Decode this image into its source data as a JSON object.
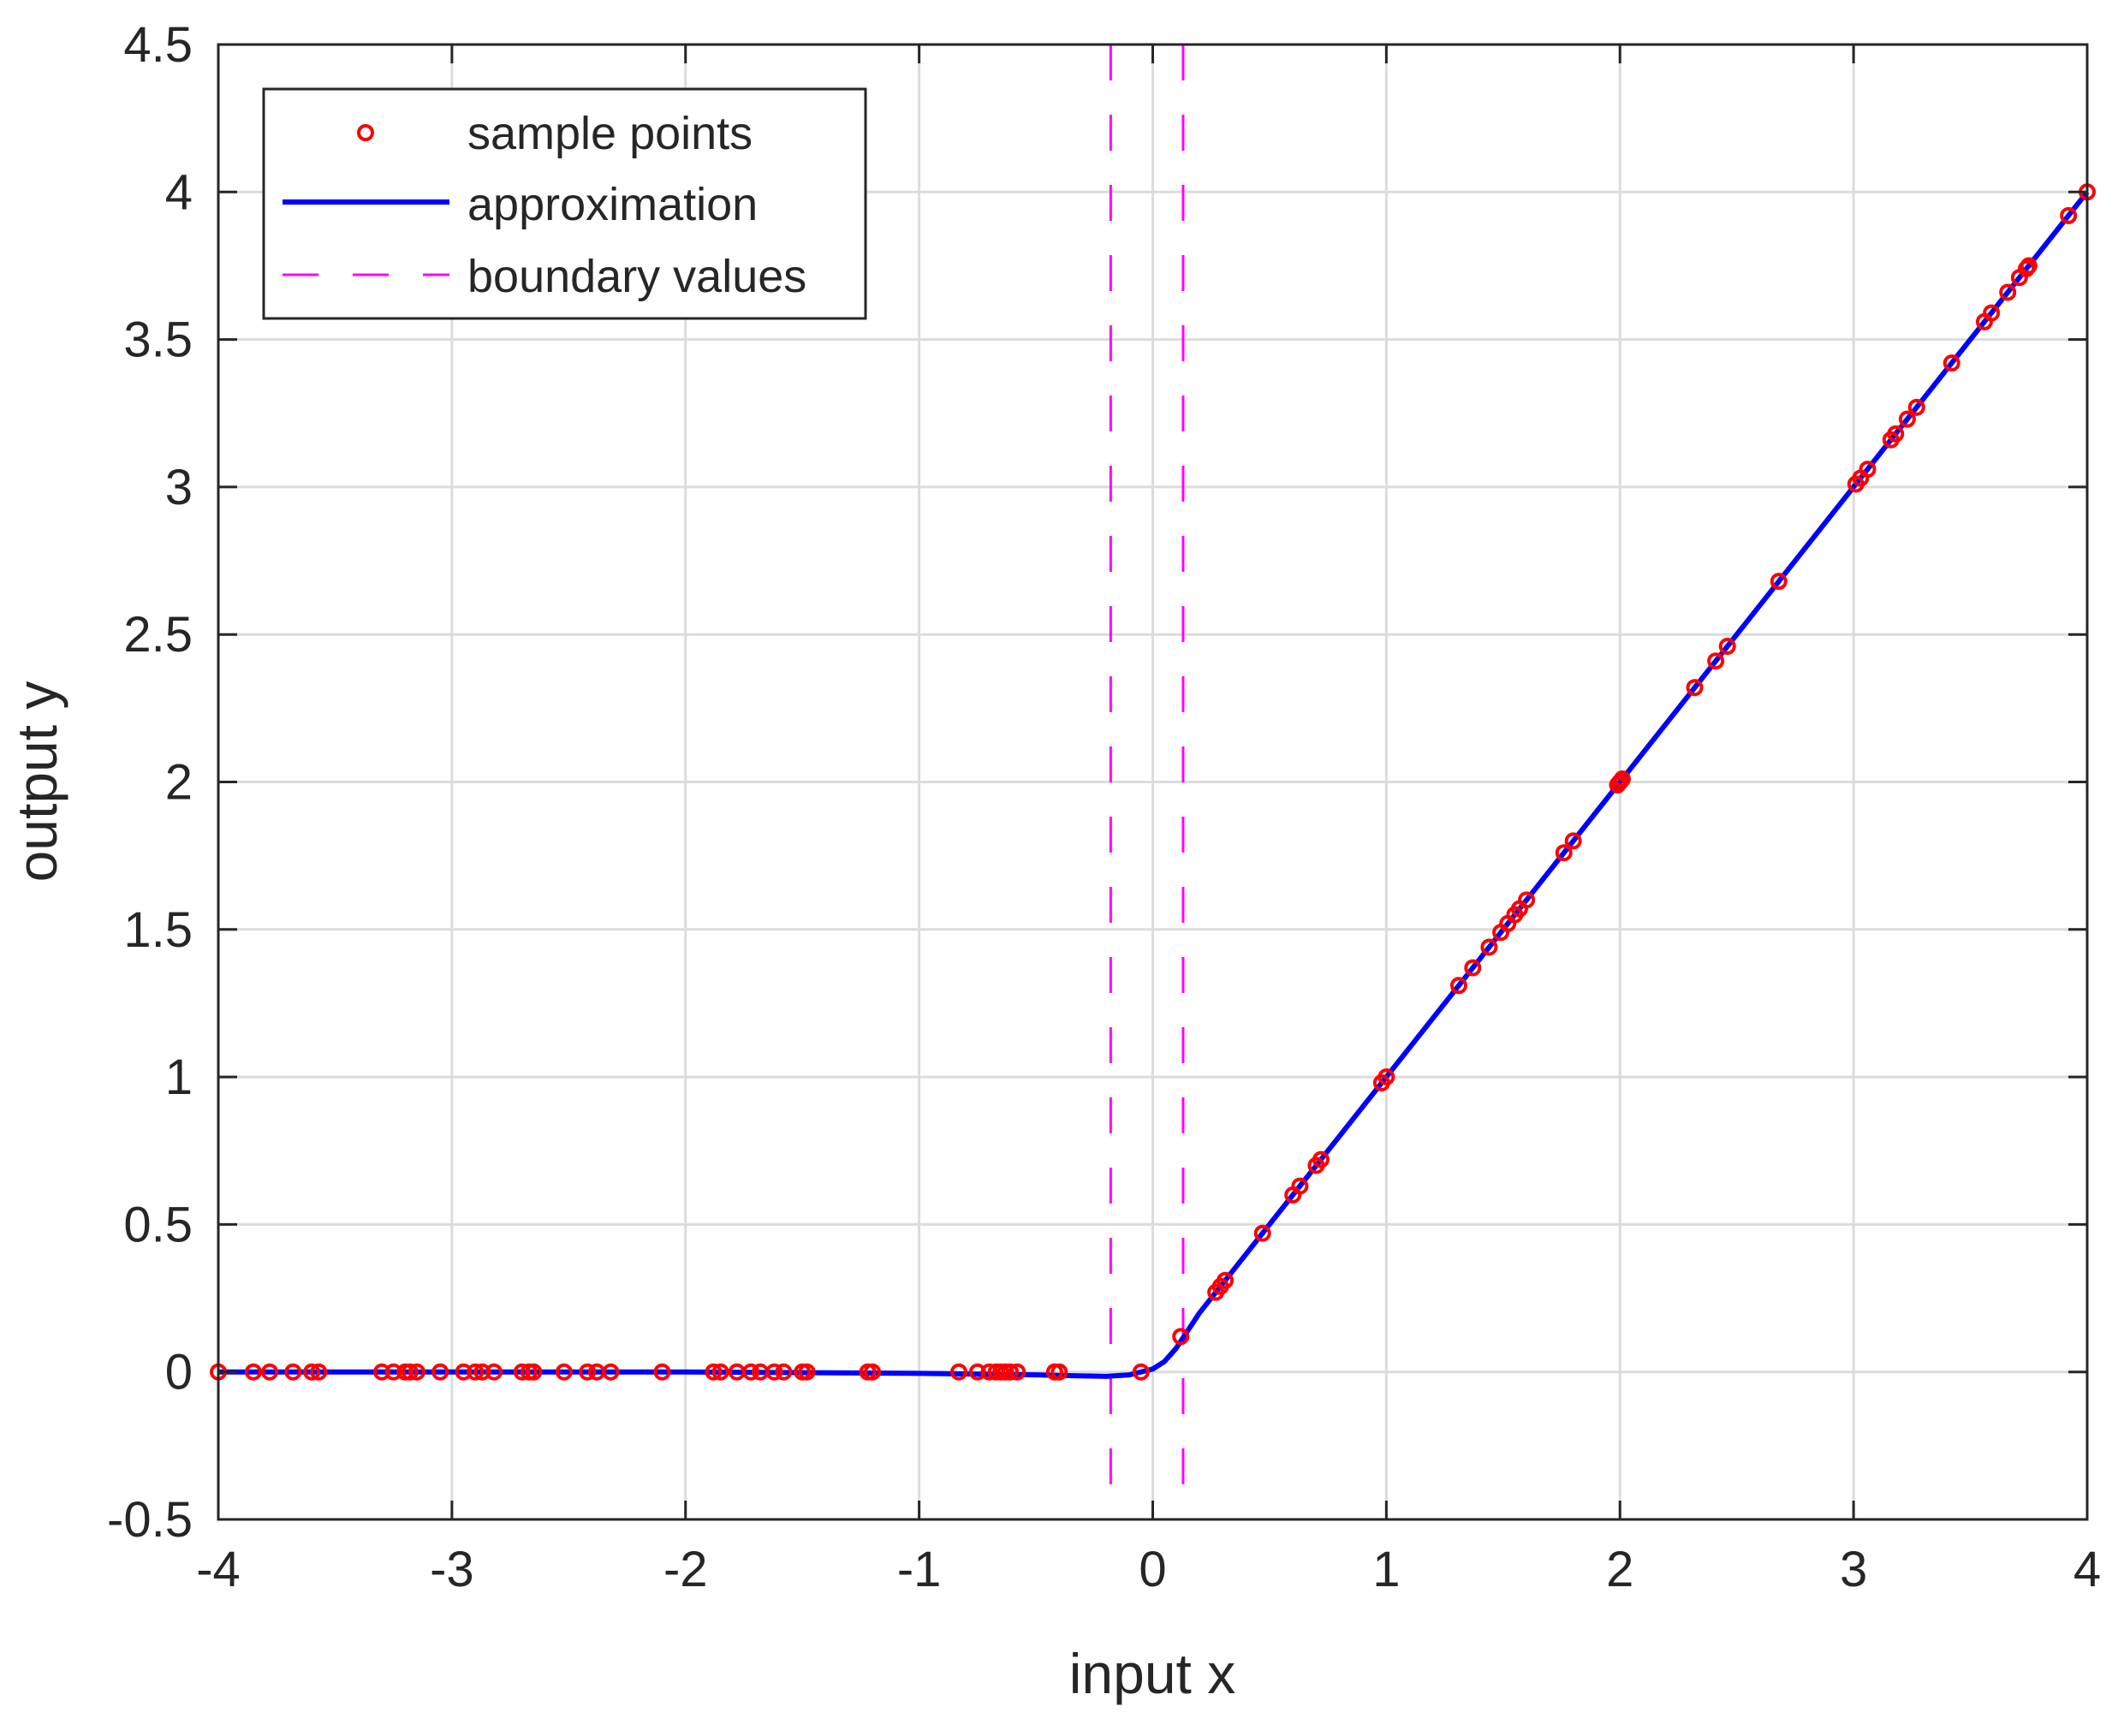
{
  "chart_data": {
    "type": "line",
    "xlabel": "input x",
    "ylabel": "output y",
    "xlim": [
      -4,
      4
    ],
    "ylim": [
      -0.5,
      4.5
    ],
    "grid": true,
    "legend_placement": "top-left",
    "x_ticks": [
      -4,
      -3,
      -2,
      -1,
      0,
      1,
      2,
      3,
      4
    ],
    "x_tick_labels": [
      "-4",
      "-3",
      "-2",
      "-1",
      "0",
      "1",
      "2",
      "3",
      "4"
    ],
    "y_ticks": [
      -0.5,
      0,
      0.5,
      1,
      1.5,
      2,
      2.5,
      3,
      3.5,
      4,
      4.5
    ],
    "y_tick_labels": [
      "-0.5",
      "0",
      "0.5",
      "1",
      "1.5",
      "2",
      "2.5",
      "3",
      "3.5",
      "4",
      "4.5"
    ],
    "series": [
      {
        "name": "sample points",
        "kind": "scatter",
        "marker": "circle",
        "color": "#ff0000",
        "x": [
          -4.0,
          -3.85,
          -3.78,
          -3.68,
          -3.6,
          -3.57,
          -3.3,
          -3.25,
          -3.2,
          -3.18,
          -3.15,
          -3.05,
          -2.95,
          -2.9,
          -2.87,
          -2.82,
          -2.7,
          -2.67,
          -2.65,
          -2.52,
          -2.42,
          -2.38,
          -2.32,
          -2.1,
          -1.88,
          -1.85,
          -1.78,
          -1.72,
          -1.68,
          -1.62,
          -1.58,
          -1.5,
          -1.48,
          -1.22,
          -1.2,
          -0.83,
          -0.75,
          -0.7,
          -0.67,
          -0.65,
          -0.63,
          -0.61,
          -0.58,
          -0.42,
          -0.4,
          -0.05,
          0.12,
          0.27,
          0.29,
          0.31,
          0.47,
          0.6,
          0.63,
          0.7,
          0.72,
          0.98,
          1.0,
          1.31,
          1.37,
          1.44,
          1.49,
          1.52,
          1.55,
          1.57,
          1.6,
          1.76,
          1.8,
          1.99,
          2.0,
          2.01,
          2.32,
          2.41,
          2.46,
          2.68,
          3.01,
          3.03,
          3.06,
          3.16,
          3.18,
          3.23,
          3.27,
          3.42,
          3.56,
          3.59,
          3.66,
          3.71,
          3.74,
          3.75,
          3.92,
          4.0
        ],
        "y": [
          0.0,
          0.0,
          0.0,
          0.0,
          0.0,
          0.0,
          0.0,
          0.0,
          0.0,
          0.0,
          0.0,
          0.0,
          0.0,
          0.0,
          0.0,
          0.0,
          0.0,
          0.0,
          0.0,
          0.0,
          0.0,
          0.0,
          0.0,
          0.0,
          0.0,
          0.0,
          0.0,
          0.0,
          0.0,
          0.0,
          0.0,
          0.0,
          0.0,
          0.0,
          0.0,
          0.0,
          0.0,
          0.0,
          0.0,
          0.0,
          0.0,
          0.0,
          0.0,
          0.0,
          0.0,
          0.0,
          0.12,
          0.27,
          0.29,
          0.31,
          0.47,
          0.6,
          0.63,
          0.7,
          0.72,
          0.98,
          1.0,
          1.31,
          1.37,
          1.44,
          1.49,
          1.52,
          1.55,
          1.57,
          1.6,
          1.76,
          1.8,
          1.99,
          2.0,
          2.01,
          2.32,
          2.41,
          2.46,
          2.68,
          3.01,
          3.03,
          3.06,
          3.16,
          3.18,
          3.23,
          3.27,
          3.42,
          3.56,
          3.59,
          3.66,
          3.71,
          3.74,
          3.75,
          3.92,
          4.0
        ]
      },
      {
        "name": "approximation",
        "kind": "line",
        "color": "#0000ff",
        "x": [
          -4.0,
          -3.0,
          -2.0,
          -1.0,
          -0.5,
          -0.2,
          -0.1,
          0.0,
          0.05,
          0.1,
          0.15,
          0.2,
          0.3,
          0.5,
          1.0,
          2.0,
          3.0,
          4.0
        ],
        "y": [
          0.0,
          0.0,
          0.0,
          -0.005,
          -0.01,
          -0.015,
          -0.01,
          0.01,
          0.035,
          0.08,
          0.14,
          0.2,
          0.3,
          0.5,
          1.0,
          2.0,
          3.0,
          4.0
        ]
      },
      {
        "name": "boundary values",
        "kind": "vline",
        "style": "dashed",
        "color": "#ff00ff",
        "x": [
          -0.18,
          0.13
        ]
      }
    ]
  }
}
